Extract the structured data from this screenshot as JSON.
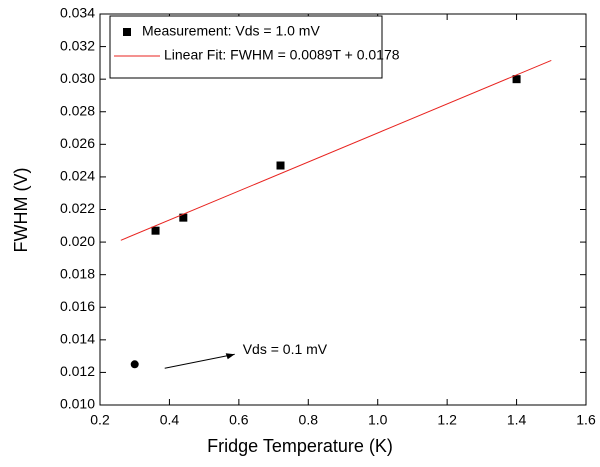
{
  "chart_data": {
    "type": "scatter",
    "xlabel": "Fridge Temperature (K)",
    "ylabel": "FWHM (V)",
    "xlim": [
      0.2,
      1.6
    ],
    "ylim": [
      0.01,
      0.034
    ],
    "xticks": [
      0.2,
      0.4,
      0.6,
      0.8,
      {
        "value": 1,
        "label": "1.0"
      },
      1.2,
      1.4,
      1.6
    ],
    "yticks": [
      {
        "value": 0.01,
        "label": "0.010"
      },
      0.012,
      0.014,
      0.016,
      0.018,
      {
        "value": 0.02,
        "label": "0.020"
      },
      0.022,
      0.024,
      0.026,
      0.028,
      {
        "value": 0.03,
        "label": "0.030"
      },
      0.032,
      0.034
    ],
    "legend": "upper left",
    "series": [
      {
        "name": "Measurement: Vds = 1.0 mV",
        "marker": "square",
        "color": "#000000",
        "x": [
          0.36,
          0.44,
          0.72,
          1.4
        ],
        "values": [
          0.0207,
          0.0215,
          0.0247,
          0.03
        ]
      },
      {
        "name": "Linear Fit: FWHM = 0.0089T + 0.0178",
        "marker": "line",
        "color": "#e8231f",
        "x": [
          0.26,
          1.5
        ],
        "values": [
          0.02011,
          0.03115
        ]
      },
      {
        "marker": "circle",
        "color": "#000000",
        "x": [
          0.3
        ],
        "values": [
          0.0125
        ],
        "annotation": "Vds = 0.1 mV"
      }
    ]
  }
}
